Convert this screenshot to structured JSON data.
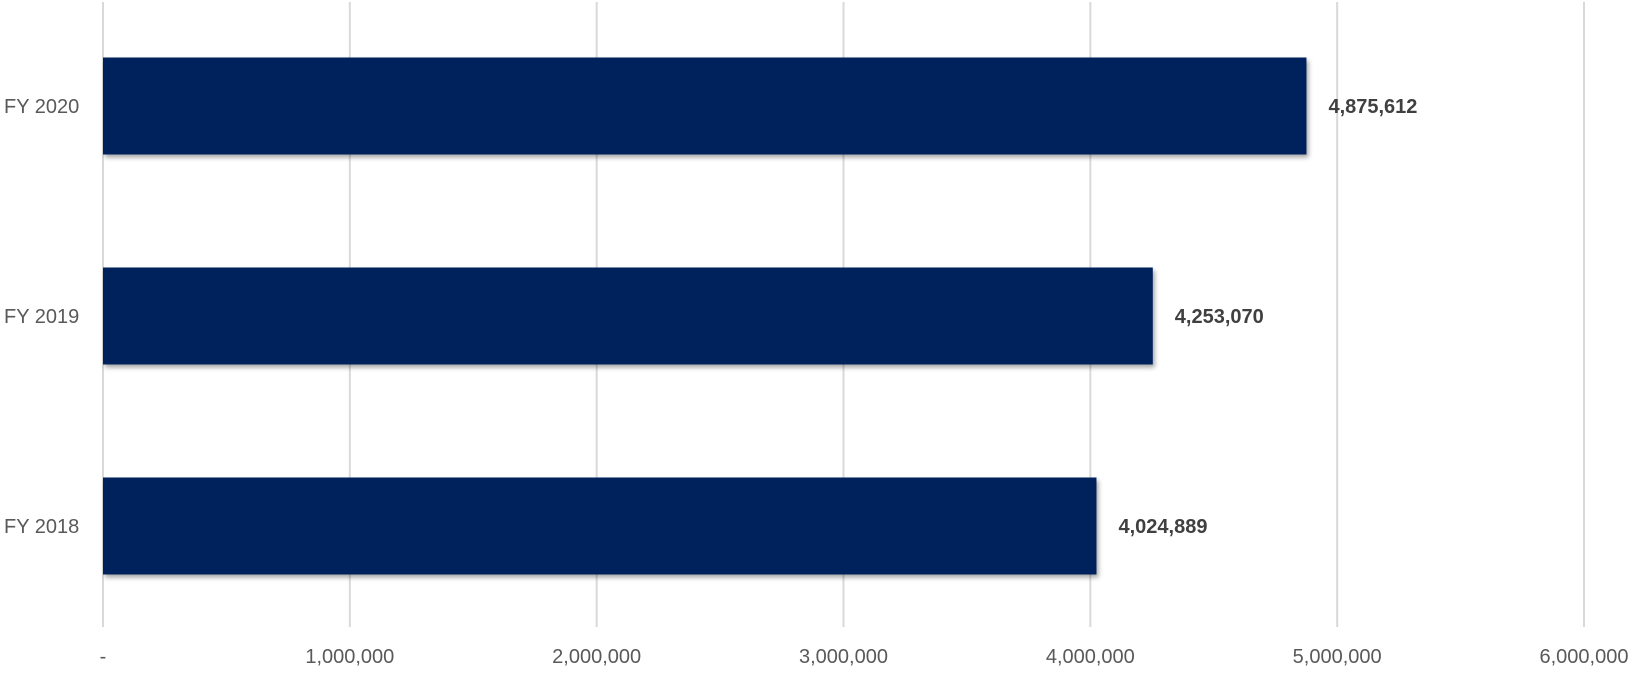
{
  "chart_data": {
    "type": "bar",
    "orientation": "horizontal",
    "categories": [
      "FY 2020",
      "FY 2019",
      "FY 2018"
    ],
    "values": [
      4875612,
      4253070,
      4024889
    ],
    "value_labels": [
      "4,875,612",
      "4,253,070",
      "4,024,889"
    ],
    "xlim": [
      0,
      6000000
    ],
    "x_ticks": [
      0,
      1000000,
      2000000,
      3000000,
      4000000,
      5000000,
      6000000
    ],
    "x_tick_labels": [
      "-",
      "1,000,000",
      "2,000,000",
      "3,000,000",
      "4,000,000",
      "5,000,000",
      "6,000,000"
    ],
    "title": "",
    "xlabel": "",
    "ylabel": "",
    "grid": "vertical",
    "legend": "none",
    "bar_color": "#00205B"
  }
}
